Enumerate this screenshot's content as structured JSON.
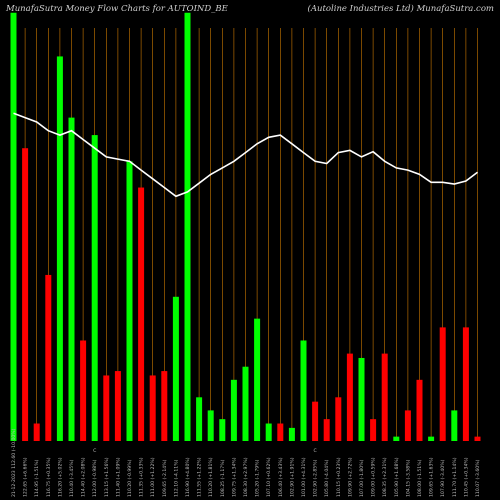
{
  "header": {
    "left": "MunafaSutra  Money Flow  Charts for AUTOIND_BE",
    "right": "(Autoline   Industries Ltd) MunafaSutra.com"
  },
  "colors": {
    "background": "#000000",
    "up": "#00ff00",
    "down": "#ff0000",
    "grid": "#cc7a00",
    "line": "#ffffff",
    "text": "#cfcfcf"
  },
  "chart_data": {
    "type": "bar",
    "ylim": [
      0,
      100
    ],
    "categories": [
      "21-12-2023 112.60 (-10.00%)",
      "122.65 (+6.66%)",
      "114.95 (-1.51%)",
      "116.75 (+0.35%)",
      "116.20 (+5.02%)",
      "110.40 (-3.45%)",
      "114.40 (+2.08%)",
      "112.00 (-0.98%)",
      "113.15 (+1.56%)",
      "111.40 (+1.09%)",
      "110.20 (-0.99%)",
      "111.35 (+0.33%)",
      "111.00 (+1.22%)",
      "109.65 (-2.14%)",
      "112.10 (-4.11%)",
      "116.90 (+4.80%)",
      "111.55 (+1.22%)",
      "110.20 (+1.81%)",
      "108.25 (-1.17%)",
      "109.75 (+1.34%)",
      "108.30 (+2.97%)",
      "105.20 (-1.79%)",
      "107.10 (+0.62%)",
      "106.40 (+3.43%)",
      "102.90 (+1.91%)",
      "101.00 (+4.31%)",
      "102.90 (-2.85%)",
      "105.80 (-4.04%)",
      "110.15 (+0.23%)",
      "109.90 (+2.72%)",
      "107.00 (-1.80%)",
      "109.00 (+0.59%)",
      "108.35 (+2.31%)",
      "105.90 (+1.68%)",
      "104.15 (-3.58%)",
      "108.00 (-1.51%)",
      "109.65 (+1.63%)",
      "107.90 (-3.40%)",
      "111.70 (+1.14%)",
      "110.45 (+0.34%)",
      "110.07 (-3.60%)"
    ],
    "values": [
      98,
      67,
      4,
      38,
      88,
      74,
      23,
      70,
      15,
      16,
      64,
      58,
      15,
      16,
      33,
      98,
      10,
      7,
      5,
      14,
      17,
      28,
      4,
      4,
      3,
      23,
      9,
      5,
      10,
      20,
      19,
      5,
      20,
      1,
      7,
      14,
      1,
      26,
      7,
      26,
      1
    ],
    "direction": [
      "up",
      "down",
      "down",
      "down",
      "up",
      "up",
      "down",
      "up",
      "down",
      "down",
      "up",
      "down",
      "down",
      "down",
      "up",
      "up",
      "up",
      "up",
      "up",
      "up",
      "up",
      "up",
      "up",
      "down",
      "up",
      "up",
      "down",
      "down",
      "down",
      "down",
      "up",
      "down",
      "down",
      "up",
      "down",
      "down",
      "up",
      "down",
      "up",
      "down",
      "down"
    ],
    "line": [
      75,
      74,
      73,
      71,
      70,
      71,
      69,
      67,
      65,
      64.5,
      64,
      62,
      60,
      58,
      56,
      57,
      59,
      61,
      62.5,
      64,
      66,
      68,
      69.5,
      70,
      68,
      66,
      64,
      63.5,
      66,
      66.5,
      65,
      66.2,
      64,
      62.5,
      62,
      61,
      59.2,
      59.2,
      58.8,
      59.5,
      61.5
    ]
  },
  "x_axis_marks": [
    {
      "index": 7,
      "label": "C"
    },
    {
      "index": 26,
      "label": "C"
    }
  ]
}
